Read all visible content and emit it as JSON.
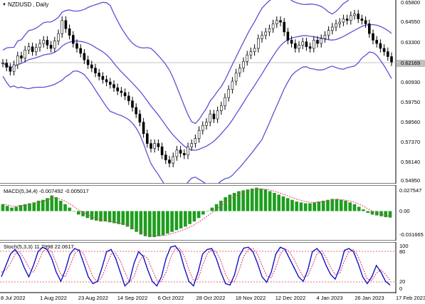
{
  "symbol": {
    "name": "NZDUSD",
    "timeframe": "Daily",
    "separator": ","
  },
  "price_axis": [
    "0.65800",
    "0.64550",
    "0.63300",
    "0.60930",
    "0.59750",
    "0.58560",
    "0.57370",
    "0.56140",
    "0.54950"
  ],
  "current_price": "0.62169",
  "macd": {
    "label": "MACD(5,34,4) -0.007492 -0.005017",
    "axis": [
      "0.027547",
      "0.00",
      "-0.031665"
    ]
  },
  "stoch": {
    "label": "Stoch(5,3,3) 11.7998 22.0617",
    "axis": [
      "100",
      "80",
      "20",
      "0"
    ]
  },
  "dates": [
    "8 Jul 2022",
    "1 Aug 2022",
    "23 Aug 2022",
    "14 Sep 2022",
    "6 Oct 2022",
    "28 Oct 2022",
    "18 Nov 2022",
    "12 Dec 2022",
    "4 Jan 2023",
    "26 Jan 2023",
    "17 Feb 2023"
  ],
  "colors": {
    "band": "#5b52d6",
    "candle": "#000000",
    "macd_hist": "#1e9e1e",
    "signal": "#e0407a",
    "stoch_main": "#1212c8",
    "stoch_signal": "#e0305a",
    "level": "#e04040"
  },
  "chart_data": {
    "type": "line",
    "title": "NZDUSD,Daily",
    "close": [
      0.621,
      0.6185,
      0.616,
      0.62,
      0.6255,
      0.624,
      0.629,
      0.631,
      0.628,
      0.6305,
      0.633,
      0.635,
      0.632,
      0.63,
      0.6345,
      0.639,
      0.647,
      0.642,
      0.638,
      0.633,
      0.63,
      0.627,
      0.623,
      0.62,
      0.618,
      0.615,
      0.613,
      0.611,
      0.6095,
      0.608,
      0.606,
      0.604,
      0.603,
      0.601,
      0.598,
      0.594,
      0.59,
      0.585,
      0.578,
      0.572,
      0.569,
      0.572,
      0.57,
      0.565,
      0.562,
      0.56,
      0.564,
      0.568,
      0.566,
      0.565,
      0.57,
      0.572,
      0.575,
      0.58,
      0.583,
      0.585,
      0.59,
      0.587,
      0.592,
      0.595,
      0.6,
      0.605,
      0.61,
      0.615,
      0.618,
      0.622,
      0.626,
      0.628,
      0.63,
      0.636,
      0.638,
      0.64,
      0.642,
      0.645,
      0.647,
      0.646,
      0.64,
      0.635,
      0.633,
      0.63,
      0.632,
      0.634,
      0.631,
      0.63,
      0.635,
      0.633,
      0.636,
      0.638,
      0.641,
      0.643,
      0.645,
      0.646,
      0.648,
      0.647,
      0.65,
      0.651,
      0.648,
      0.647,
      0.645,
      0.639,
      0.635,
      0.633,
      0.63,
      0.628,
      0.625,
      0.6217
    ],
    "macd_hist": [
      0.008,
      0.006,
      0.004,
      0.005,
      0.007,
      0.008,
      0.009,
      0.01,
      0.012,
      0.013,
      0.015,
      0.018,
      0.016,
      0.012,
      0.008,
      0.004,
      0.0,
      -0.004,
      -0.006,
      -0.008,
      -0.01,
      -0.011,
      -0.012,
      -0.012,
      -0.013,
      -0.014,
      -0.015,
      -0.016,
      -0.018,
      -0.021,
      -0.024,
      -0.027,
      -0.029,
      -0.03,
      -0.03,
      -0.029,
      -0.028,
      -0.026,
      -0.024,
      -0.022,
      -0.02,
      -0.018,
      -0.015,
      -0.012,
      -0.008,
      -0.004,
      0.0,
      0.004,
      0.008,
      0.012,
      0.016,
      0.019,
      0.021,
      0.023,
      0.024,
      0.025,
      0.026,
      0.027,
      0.026,
      0.025,
      0.023,
      0.021,
      0.019,
      0.017,
      0.015,
      0.013,
      0.011,
      0.01,
      0.009,
      0.009,
      0.01,
      0.011,
      0.012,
      0.013,
      0.014,
      0.014,
      0.013,
      0.012,
      0.01,
      0.008,
      0.005,
      0.002,
      -0.002,
      -0.004,
      -0.005,
      -0.006,
      -0.007,
      -0.0075
    ],
    "stoch_main": [
      30,
      55,
      80,
      90,
      75,
      50,
      30,
      55,
      85,
      95,
      90,
      70,
      40,
      20,
      45,
      80,
      92,
      88,
      60,
      30,
      15,
      20,
      50,
      85,
      90,
      70,
      40,
      10,
      20,
      60,
      85,
      75,
      45,
      20,
      10,
      30,
      70,
      95,
      98,
      85,
      50,
      20,
      10,
      40,
      80,
      90,
      92,
      70,
      40,
      15,
      12,
      35,
      75,
      93,
      95,
      85,
      60,
      30,
      18,
      40,
      80,
      95,
      90,
      70,
      50,
      30,
      20,
      45,
      85,
      92,
      80,
      55,
      35,
      25,
      50,
      88,
      92,
      85,
      60,
      30,
      15,
      30,
      55,
      40,
      20,
      12
    ],
    "stoch_signal": [
      40,
      45,
      60,
      80,
      85,
      70,
      50,
      40,
      60,
      85,
      92,
      85,
      60,
      35,
      30,
      55,
      80,
      90,
      80,
      55,
      30,
      18,
      30,
      55,
      80,
      82,
      65,
      40,
      18,
      30,
      60,
      78,
      70,
      45,
      22,
      20,
      40,
      72,
      92,
      93,
      75,
      45,
      22,
      25,
      55,
      80,
      90,
      85,
      65,
      35,
      18,
      20,
      45,
      75,
      90,
      92,
      80,
      55,
      32,
      28,
      50,
      80,
      92,
      85,
      68,
      48,
      30,
      32,
      55,
      80,
      88,
      72,
      50,
      35,
      38,
      65,
      85,
      90,
      75,
      50,
      25,
      22,
      38,
      45,
      35,
      22
    ]
  }
}
